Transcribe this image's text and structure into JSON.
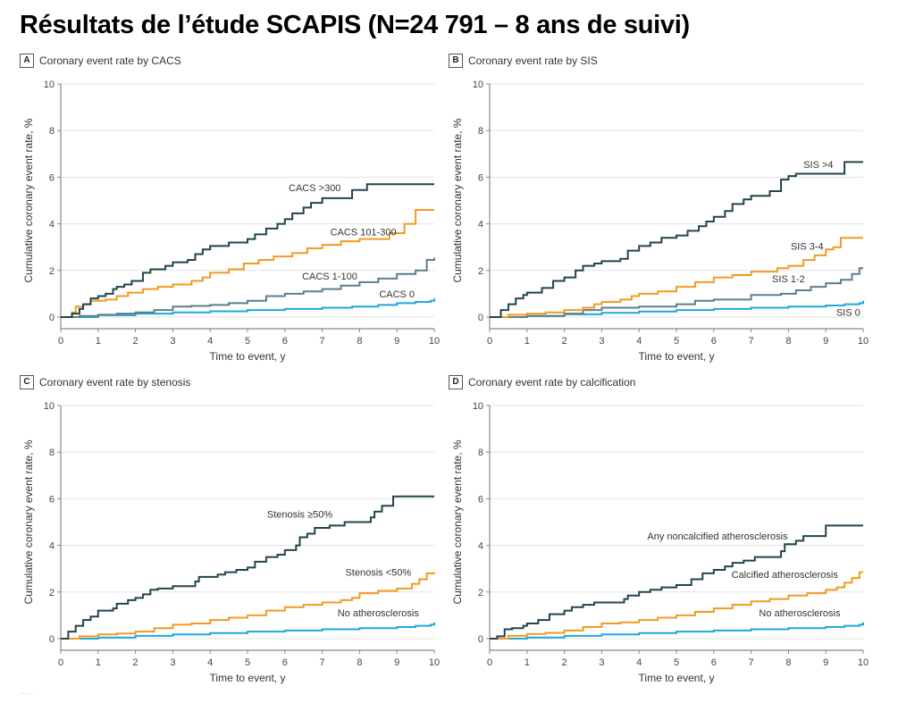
{
  "title": "Résultats de l’étude SCAPIS (N=24 791 – 8 ans de suivi)",
  "footnote": "·· ···",
  "colors": {
    "dark": "#22444c",
    "orange": "#f29a22",
    "slate": "#5c7f8c",
    "cyan": "#1fa8dc",
    "grid": "#e3e3e3",
    "axis": "#888888"
  },
  "chart_data": [
    {
      "type": "line",
      "panel": "A",
      "title": "Coronary event rate by CACS",
      "xlabel": "Time to event, y",
      "ylabel": "Cumulative coronary event rate, %",
      "xlim": [
        0,
        10
      ],
      "ylim": [
        0,
        10
      ],
      "x_ticks": [
        "0",
        "1",
        "2",
        "3",
        "4",
        "5",
        "6",
        "7",
        "8",
        "9",
        "10"
      ],
      "y_ticks": [
        "0",
        "2",
        "4",
        "6",
        "8",
        "10"
      ],
      "grid": "horizontal",
      "step": true,
      "series": [
        {
          "name": "CACS >300",
          "color": "dark",
          "label_pos": [
            6.8,
            5.4
          ],
          "x": [
            0,
            0.3,
            0.5,
            0.6,
            0.8,
            1.0,
            1.2,
            1.4,
            1.5,
            1.7,
            1.9,
            2.2,
            2.4,
            2.8,
            3.0,
            3.4,
            3.6,
            3.8,
            4.0,
            4.5,
            5.0,
            5.2,
            5.5,
            5.8,
            6.0,
            6.2,
            6.5,
            6.7,
            7.0,
            7.8,
            8.2,
            10
          ],
          "y": [
            0,
            0.15,
            0.35,
            0.55,
            0.8,
            0.9,
            1.0,
            1.2,
            1.3,
            1.4,
            1.55,
            1.9,
            2.05,
            2.2,
            2.35,
            2.45,
            2.7,
            2.9,
            3.05,
            3.2,
            3.35,
            3.55,
            3.8,
            4.0,
            4.2,
            4.45,
            4.7,
            4.9,
            5.1,
            5.45,
            5.7,
            5.7
          ]
        },
        {
          "name": "CACS 101-300",
          "color": "orange",
          "label_pos": [
            8.1,
            3.5
          ],
          "x": [
            0,
            0.3,
            0.4,
            0.6,
            0.8,
            1.2,
            1.5,
            1.8,
            2.2,
            2.6,
            3.0,
            3.5,
            3.8,
            4.0,
            4.5,
            4.9,
            5.3,
            5.7,
            6.2,
            6.6,
            7.0,
            7.5,
            8.0,
            8.8,
            9.2,
            9.5,
            10
          ],
          "y": [
            0,
            0.2,
            0.45,
            0.55,
            0.7,
            0.75,
            0.9,
            1.05,
            1.2,
            1.3,
            1.4,
            1.55,
            1.7,
            1.9,
            2.05,
            2.3,
            2.45,
            2.6,
            2.75,
            2.95,
            3.1,
            3.25,
            3.35,
            3.6,
            4.0,
            4.6,
            4.6
          ]
        },
        {
          "name": "CACS 1-100",
          "color": "slate",
          "label_pos": [
            7.2,
            1.6
          ],
          "x": [
            0,
            0.5,
            1.0,
            1.5,
            2.0,
            2.5,
            3.0,
            3.5,
            4.0,
            4.5,
            5.0,
            5.5,
            6.0,
            6.5,
            7.0,
            7.5,
            8.0,
            8.5,
            9.0,
            9.5,
            9.8,
            10
          ],
          "y": [
            0,
            0.05,
            0.1,
            0.15,
            0.2,
            0.3,
            0.45,
            0.48,
            0.52,
            0.6,
            0.7,
            0.9,
            1.0,
            1.1,
            1.2,
            1.35,
            1.5,
            1.65,
            1.85,
            2.0,
            2.45,
            2.55
          ]
        },
        {
          "name": "CACS 0",
          "color": "cyan",
          "label_pos": [
            9.0,
            0.85
          ],
          "x": [
            0,
            1,
            2,
            3,
            4,
            5,
            6,
            7,
            7.8,
            8.5,
            9.0,
            9.5,
            9.9,
            10
          ],
          "y": [
            0,
            0.08,
            0.15,
            0.2,
            0.25,
            0.3,
            0.35,
            0.4,
            0.45,
            0.52,
            0.6,
            0.65,
            0.7,
            0.8
          ]
        }
      ]
    },
    {
      "type": "line",
      "panel": "B",
      "title": "Coronary event rate by SIS",
      "xlabel": "Time to event, y",
      "ylabel": "Cumulative coronary event rate, %",
      "xlim": [
        0,
        10
      ],
      "ylim": [
        0,
        10
      ],
      "x_ticks": [
        "0",
        "1",
        "2",
        "3",
        "4",
        "5",
        "6",
        "7",
        "8",
        "9",
        "10"
      ],
      "y_ticks": [
        "0",
        "2",
        "4",
        "6",
        "8",
        "10"
      ],
      "grid": "horizontal",
      "step": true,
      "series": [
        {
          "name": "SIS >4",
          "color": "dark",
          "label_pos": [
            8.8,
            6.4
          ],
          "x": [
            0,
            0.3,
            0.5,
            0.7,
            0.9,
            1.0,
            1.4,
            1.7,
            2.0,
            2.3,
            2.5,
            2.8,
            3.0,
            3.5,
            3.7,
            4.0,
            4.3,
            4.6,
            5.0,
            5.3,
            5.6,
            5.8,
            6.0,
            6.3,
            6.5,
            6.8,
            7.0,
            7.5,
            7.8,
            8.0,
            8.2,
            9.5,
            10
          ],
          "y": [
            0,
            0.3,
            0.55,
            0.8,
            0.95,
            1.05,
            1.25,
            1.55,
            1.7,
            2.0,
            2.2,
            2.3,
            2.4,
            2.5,
            2.85,
            3.05,
            3.2,
            3.4,
            3.5,
            3.7,
            3.9,
            4.1,
            4.3,
            4.55,
            4.85,
            5.05,
            5.2,
            5.4,
            5.9,
            6.05,
            6.15,
            6.65,
            6.65
          ]
        },
        {
          "name": "SIS 3-4",
          "color": "orange",
          "label_pos": [
            8.5,
            2.9
          ],
          "x": [
            0,
            0.5,
            1.0,
            1.5,
            2.0,
            2.5,
            2.8,
            3.0,
            3.5,
            3.8,
            4.0,
            4.5,
            5.0,
            5.5,
            6.0,
            6.5,
            7.0,
            7.7,
            8.0,
            8.4,
            8.7,
            9.0,
            9.2,
            9.4,
            10
          ],
          "y": [
            0,
            0.1,
            0.15,
            0.2,
            0.3,
            0.4,
            0.55,
            0.65,
            0.75,
            0.9,
            1.0,
            1.1,
            1.3,
            1.5,
            1.7,
            1.8,
            1.95,
            2.1,
            2.2,
            2.45,
            2.65,
            2.9,
            3.0,
            3.4,
            3.4
          ]
        },
        {
          "name": "SIS 1-2",
          "color": "slate",
          "label_pos": [
            8.0,
            1.5
          ],
          "x": [
            0,
            1,
            2,
            2.5,
            3,
            4,
            5,
            5.5,
            6,
            7,
            7.8,
            8.2,
            8.6,
            9.0,
            9.4,
            9.7,
            9.9,
            10
          ],
          "y": [
            0,
            0.05,
            0.15,
            0.3,
            0.4,
            0.45,
            0.55,
            0.7,
            0.75,
            0.95,
            1.0,
            1.15,
            1.3,
            1.45,
            1.6,
            1.85,
            2.1,
            2.1
          ]
        },
        {
          "name": "SIS 0",
          "color": "cyan",
          "label_pos": [
            9.6,
            0.05
          ],
          "x": [
            0,
            1,
            2,
            3,
            4,
            5,
            6,
            7,
            8,
            9,
            9.5,
            9.9,
            10
          ],
          "y": [
            0,
            0.05,
            0.12,
            0.18,
            0.24,
            0.3,
            0.35,
            0.4,
            0.45,
            0.5,
            0.55,
            0.6,
            0.7
          ]
        }
      ]
    },
    {
      "type": "line",
      "panel": "C",
      "title": "Coronary event rate by stenosis",
      "xlabel": "Time to event, y",
      "ylabel": "Cumulative coronary event rate, %",
      "xlim": [
        0,
        10
      ],
      "ylim": [
        0,
        10
      ],
      "x_ticks": [
        "0",
        "1",
        "2",
        "3",
        "4",
        "5",
        "6",
        "7",
        "8",
        "9",
        "10"
      ],
      "y_ticks": [
        "0",
        "2",
        "4",
        "6",
        "8",
        "10"
      ],
      "grid": "horizontal",
      "step": true,
      "series": [
        {
          "name": "Stenosis ≥50%",
          "color": "dark",
          "label_pos": [
            6.4,
            5.2
          ],
          "x": [
            0,
            0.2,
            0.4,
            0.6,
            0.8,
            1.0,
            1.4,
            1.5,
            1.8,
            2.0,
            2.2,
            2.4,
            2.6,
            3.0,
            3.6,
            3.7,
            4.2,
            4.4,
            4.7,
            5.0,
            5.2,
            5.5,
            5.8,
            6.0,
            6.3,
            6.4,
            6.6,
            6.8,
            7.2,
            7.6,
            8.3,
            8.4,
            8.6,
            8.9,
            10
          ],
          "y": [
            0,
            0.3,
            0.55,
            0.8,
            0.95,
            1.2,
            1.3,
            1.5,
            1.65,
            1.75,
            1.9,
            2.1,
            2.15,
            2.25,
            2.45,
            2.65,
            2.75,
            2.85,
            2.95,
            3.05,
            3.3,
            3.5,
            3.6,
            3.8,
            4.0,
            4.35,
            4.5,
            4.75,
            4.85,
            5.0,
            5.2,
            5.45,
            5.7,
            6.1,
            6.1
          ]
        },
        {
          "name": "Stenosis <50%",
          "color": "orange",
          "label_pos": [
            8.5,
            2.7
          ],
          "x": [
            0,
            0.5,
            1.0,
            1.5,
            2.0,
            2.5,
            3.0,
            3.5,
            4.0,
            4.5,
            5.0,
            5.5,
            6.0,
            6.5,
            7.0,
            7.5,
            7.8,
            8.0,
            8.5,
            9.0,
            9.4,
            9.6,
            9.8,
            10
          ],
          "y": [
            0,
            0.1,
            0.18,
            0.22,
            0.3,
            0.45,
            0.6,
            0.65,
            0.8,
            0.9,
            1.0,
            1.2,
            1.35,
            1.45,
            1.55,
            1.65,
            1.75,
            1.95,
            2.05,
            2.15,
            2.35,
            2.55,
            2.8,
            2.85
          ]
        },
        {
          "name": "No atherosclerosis",
          "color": "cyan",
          "label_pos": [
            8.5,
            0.95
          ],
          "x": [
            0,
            1,
            2,
            3,
            4,
            5,
            6,
            7,
            8,
            9,
            9.5,
            9.9,
            10
          ],
          "y": [
            0,
            0.05,
            0.12,
            0.18,
            0.24,
            0.3,
            0.35,
            0.4,
            0.45,
            0.5,
            0.55,
            0.6,
            0.7
          ]
        }
      ]
    },
    {
      "type": "line",
      "panel": "D",
      "title": "Coronary event rate by calcification",
      "xlabel": "Time to event, y",
      "ylabel": "Cumulative coronary event rate, %",
      "xlim": [
        0,
        10
      ],
      "ylim": [
        0,
        10
      ],
      "x_ticks": [
        "0",
        "1",
        "2",
        "3",
        "4",
        "5",
        "6",
        "7",
        "8",
        "9",
        "10"
      ],
      "y_ticks": [
        "0",
        "2",
        "4",
        "6",
        "8",
        "10"
      ],
      "grid": "horizontal",
      "step": true,
      "series": [
        {
          "name": "Any noncalcified atherosclerosis",
          "color": "dark",
          "label_pos": [
            6.1,
            4.25
          ],
          "x": [
            0,
            0.2,
            0.4,
            0.6,
            0.9,
            1.0,
            1.3,
            1.6,
            2.0,
            2.2,
            2.5,
            2.8,
            3.6,
            3.7,
            4.0,
            4.3,
            4.6,
            5.0,
            5.4,
            5.7,
            6.0,
            6.3,
            6.5,
            6.8,
            7.1,
            7.8,
            7.9,
            8.2,
            8.4,
            9.0,
            10
          ],
          "y": [
            0,
            0.1,
            0.4,
            0.45,
            0.55,
            0.65,
            0.8,
            1.05,
            1.2,
            1.35,
            1.45,
            1.55,
            1.7,
            1.85,
            2.0,
            2.1,
            2.2,
            2.3,
            2.55,
            2.8,
            2.95,
            3.1,
            3.25,
            3.35,
            3.5,
            3.75,
            4.05,
            4.2,
            4.4,
            4.85,
            4.85
          ]
        },
        {
          "name": "Calcified atherosclerosis",
          "color": "orange",
          "label_pos": [
            7.9,
            2.6
          ],
          "x": [
            0,
            0.5,
            1.0,
            1.5,
            2.0,
            2.5,
            3.0,
            3.5,
            4.0,
            4.5,
            5.0,
            5.5,
            6.0,
            6.5,
            7.0,
            7.5,
            8.0,
            8.5,
            9.0,
            9.3,
            9.5,
            9.7,
            9.9,
            10
          ],
          "y": [
            0,
            0.12,
            0.2,
            0.25,
            0.35,
            0.5,
            0.65,
            0.7,
            0.8,
            0.9,
            1.0,
            1.15,
            1.3,
            1.45,
            1.6,
            1.7,
            1.85,
            1.95,
            2.1,
            2.2,
            2.4,
            2.6,
            2.85,
            2.85
          ]
        },
        {
          "name": "No atherosclerosis",
          "color": "cyan",
          "label_pos": [
            8.3,
            0.95
          ],
          "x": [
            0,
            1,
            2,
            3,
            4,
            5,
            6,
            7,
            8,
            9,
            9.5,
            9.9,
            10
          ],
          "y": [
            0,
            0.05,
            0.12,
            0.18,
            0.24,
            0.3,
            0.35,
            0.4,
            0.45,
            0.5,
            0.55,
            0.6,
            0.7
          ]
        }
      ]
    }
  ]
}
